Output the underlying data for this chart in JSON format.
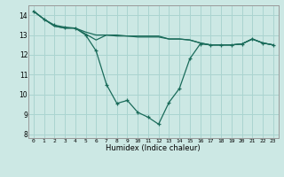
{
  "xlabel": "Humidex (Indice chaleur)",
  "x": [
    0,
    1,
    2,
    3,
    4,
    5,
    6,
    7,
    8,
    9,
    10,
    11,
    12,
    13,
    14,
    15,
    16,
    17,
    18,
    19,
    20,
    21,
    22,
    23
  ],
  "line1": [
    14.2,
    13.8,
    13.5,
    13.4,
    13.35,
    13.0,
    12.2,
    10.5,
    9.55,
    9.7,
    9.1,
    8.85,
    8.5,
    9.6,
    10.3,
    11.8,
    12.55,
    12.5,
    12.5,
    12.5,
    12.55,
    12.8,
    12.6,
    12.5
  ],
  "line2": [
    14.2,
    13.8,
    13.45,
    13.35,
    13.35,
    13.05,
    12.75,
    13.0,
    12.95,
    12.95,
    12.95,
    12.95,
    12.95,
    12.8,
    12.8,
    12.75,
    12.6,
    12.5,
    12.5,
    12.5,
    12.55,
    12.8,
    12.6,
    12.5
  ],
  "line3": [
    14.2,
    13.8,
    13.45,
    13.35,
    13.35,
    13.15,
    13.0,
    13.0,
    13.0,
    12.95,
    12.9,
    12.9,
    12.9,
    12.8,
    12.8,
    12.75,
    12.6,
    12.5,
    12.5,
    12.5,
    12.55,
    12.8,
    12.6,
    12.5
  ],
  "line_color": "#1a6b5a",
  "bg_color": "#cce8e4",
  "grid_color": "#aad4d0",
  "ylim": [
    7.8,
    14.5
  ],
  "yticks": [
    8,
    9,
    10,
    11,
    12,
    13,
    14
  ],
  "marker": "+"
}
